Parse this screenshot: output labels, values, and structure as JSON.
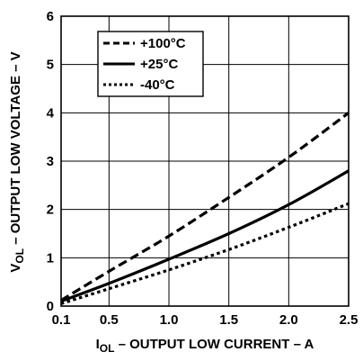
{
  "chart_data": {
    "type": "line",
    "xlabel": {
      "sym": "I",
      "sub": "OL",
      "rest": " – OUTPUT LOW CURRENT – A"
    },
    "ylabel": {
      "sym": "V",
      "sub": "OL",
      "rest": " – OUTPUT LOW VOLTAGE – V"
    },
    "xlim": [
      0.1,
      2.5
    ],
    "ylim": [
      0,
      6
    ],
    "xticks": [
      0.1,
      0.5,
      1.0,
      1.5,
      2.0,
      2.5
    ],
    "xtick_labels": [
      "0.1",
      "0.5",
      "1.0",
      "1.5",
      "2.0",
      "2.5"
    ],
    "yticks": [
      0,
      1,
      2,
      3,
      4,
      5,
      6
    ],
    "ytick_labels": [
      "0",
      "1",
      "2",
      "3",
      "4",
      "5",
      "6"
    ],
    "grid": true,
    "legend_position": "top-left",
    "series": [
      {
        "name": "+100°C",
        "style": "dashed",
        "x": [
          0.1,
          0.5,
          1.0,
          1.5,
          2.0,
          2.5
        ],
        "y": [
          0.12,
          0.72,
          1.45,
          2.25,
          3.08,
          4.0
        ]
      },
      {
        "name": "+25°C",
        "style": "solid",
        "x": [
          0.1,
          0.5,
          1.0,
          1.5,
          2.0,
          2.5
        ],
        "y": [
          0.1,
          0.47,
          0.97,
          1.5,
          2.1,
          2.8
        ]
      },
      {
        "name": "-40°C",
        "style": "dotted",
        "x": [
          0.1,
          0.5,
          1.0,
          1.5,
          2.0,
          2.5
        ],
        "y": [
          0.05,
          0.36,
          0.75,
          1.17,
          1.63,
          2.12
        ]
      }
    ]
  }
}
